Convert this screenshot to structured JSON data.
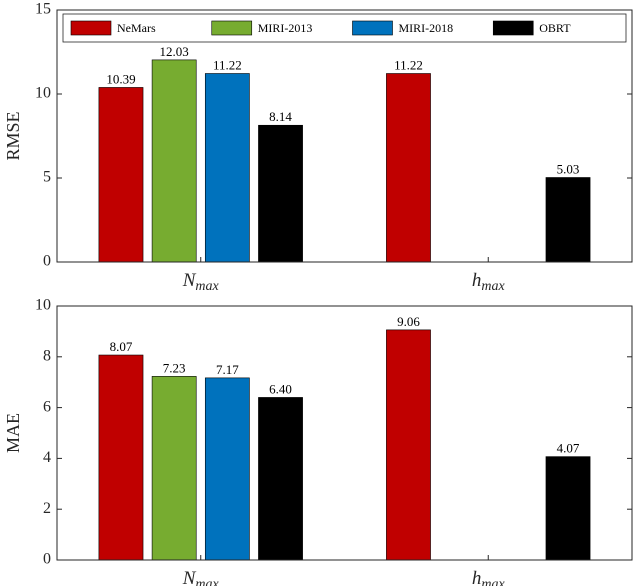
{
  "chart_data": [
    {
      "type": "bar",
      "ylabel": "RMSE",
      "categories": [
        {
          "symbol": "N",
          "subscript": "max"
        },
        {
          "symbol": "h",
          "subscript": "max"
        }
      ],
      "series": [
        {
          "name": "NeMars",
          "color": "#c00000",
          "values": [
            10.39,
            11.22
          ],
          "value_labels": [
            "10.39",
            "11.22"
          ]
        },
        {
          "name": "MIRI-2013",
          "color": "#77ac30",
          "values": [
            12.03,
            null
          ],
          "value_labels": [
            "12.03",
            null
          ]
        },
        {
          "name": "MIRI-2018",
          "color": "#0072bd",
          "values": [
            11.22,
            null
          ],
          "value_labels": [
            "11.22",
            null
          ]
        },
        {
          "name": "OBRT",
          "color": "#000000",
          "values": [
            8.14,
            5.03
          ],
          "value_labels": [
            "8.14",
            "5.03"
          ]
        }
      ],
      "ylim": [
        0,
        15
      ],
      "yticks": [
        0,
        5,
        10,
        15
      ],
      "legend": "top"
    },
    {
      "type": "bar",
      "ylabel": "MAE",
      "categories": [
        {
          "symbol": "N",
          "subscript": "max"
        },
        {
          "symbol": "h",
          "subscript": "max"
        }
      ],
      "series": [
        {
          "color": "#c00000",
          "values": [
            8.07,
            9.06
          ],
          "value_labels": [
            "8.07",
            "9.06"
          ]
        },
        {
          "color": "#77ac30",
          "values": [
            7.23,
            null
          ],
          "value_labels": [
            "7.23",
            null
          ]
        },
        {
          "color": "#0072bd",
          "values": [
            7.17,
            null
          ],
          "value_labels": [
            "7.17",
            null
          ]
        },
        {
          "color": "#000000",
          "values": [
            6.4,
            4.07
          ],
          "value_labels": [
            "6.40",
            "4.07"
          ]
        }
      ],
      "ylim": [
        0,
        10
      ],
      "yticks": [
        0,
        2,
        4,
        6,
        8,
        10
      ]
    }
  ]
}
